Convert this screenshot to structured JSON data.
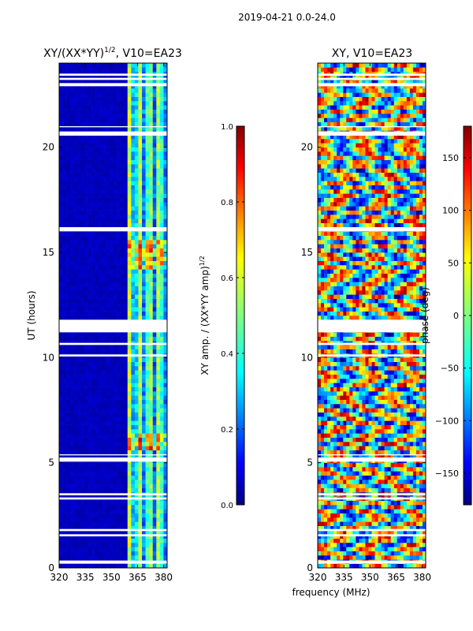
{
  "figure": {
    "suptitle": "2019-04-21 0.0-24.0",
    "xlabel": "frequency (MHz)"
  },
  "colors": {
    "jet": [
      "#00007f",
      "#0000ff",
      "#007fff",
      "#00ffff",
      "#7fff7f",
      "#ffff00",
      "#ff7f00",
      "#ff0000",
      "#7f0000"
    ],
    "gap": "#ffffff"
  },
  "chart_data": [
    {
      "type": "heatmap",
      "title_main": "XY/(XX*YY)",
      "title_sup": "1/2",
      "title_tail": ", V10=EA23",
      "xlabel": "",
      "ylabel": "UT (hours)",
      "xlim": [
        320,
        382
      ],
      "ylim": [
        0,
        24
      ],
      "xticks": [
        "320",
        "335",
        "350",
        "365",
        "380"
      ],
      "xtick_values": [
        320,
        335,
        350,
        365,
        380
      ],
      "yticks": [
        "0",
        "5",
        "10",
        "15",
        "20"
      ],
      "ytick_values": [
        0,
        5,
        10,
        15,
        20
      ],
      "colorbar": {
        "label": "XY amp. / (XX*YY amp)",
        "label_sup": "1/2",
        "ticks": [
          "0.0",
          "0.2",
          "0.4",
          "0.6",
          "0.8",
          "1.0"
        ],
        "tick_values": [
          0.0,
          0.2,
          0.4,
          0.6,
          0.8,
          1.0
        ],
        "range": [
          0.0,
          1.0
        ]
      },
      "signal_band_mhz": [
        359,
        382
      ],
      "flagged_ut_ranges": [
        [
          0.2,
          0.35
        ],
        [
          1.5,
          1.6
        ],
        [
          1.75,
          1.85
        ],
        [
          3.25,
          3.35
        ],
        [
          3.45,
          3.55
        ],
        [
          5.05,
          5.25
        ],
        [
          5.35,
          5.4
        ],
        [
          11.2,
          11.8
        ],
        [
          10.6,
          10.7
        ],
        [
          10.05,
          10.15
        ],
        [
          16.0,
          16.2
        ],
        [
          20.55,
          20.75
        ],
        [
          20.95,
          21.0
        ],
        [
          22.9,
          23.05
        ],
        [
          23.2,
          23.3
        ],
        [
          23.4,
          23.5
        ]
      ]
    },
    {
      "type": "heatmap",
      "title_main": "XY, V10=EA23",
      "title_sup": "",
      "title_tail": "",
      "xlabel": "",
      "ylabel": "",
      "xlim": [
        320,
        382
      ],
      "ylim": [
        0,
        24
      ],
      "xticks": [
        "320",
        "335",
        "350",
        "365",
        "380"
      ],
      "xtick_values": [
        320,
        335,
        350,
        365,
        380
      ],
      "yticks": [
        "0",
        "5",
        "10",
        "15",
        "20"
      ],
      "ytick_values": [
        0,
        5,
        10,
        15,
        20
      ],
      "colorbar": {
        "label": "phase (deg)",
        "label_sup": "",
        "ticks": [
          "−150",
          "−100",
          "−50",
          "0",
          "50",
          "100",
          "150"
        ],
        "tick_values": [
          -150,
          -100,
          -50,
          0,
          50,
          100,
          150
        ],
        "range": [
          -180,
          180
        ]
      },
      "flagged_ut_ranges": [
        [
          0.2,
          0.35
        ],
        [
          1.5,
          1.6
        ],
        [
          1.75,
          1.85
        ],
        [
          3.25,
          3.35
        ],
        [
          3.45,
          3.55
        ],
        [
          5.05,
          5.25
        ],
        [
          5.35,
          5.4
        ],
        [
          11.2,
          11.8
        ],
        [
          10.6,
          10.7
        ],
        [
          10.05,
          10.15
        ],
        [
          16.0,
          16.2
        ],
        [
          20.55,
          20.75
        ],
        [
          20.95,
          21.0
        ],
        [
          22.9,
          23.05
        ],
        [
          23.2,
          23.3
        ],
        [
          23.4,
          23.5
        ]
      ]
    }
  ]
}
